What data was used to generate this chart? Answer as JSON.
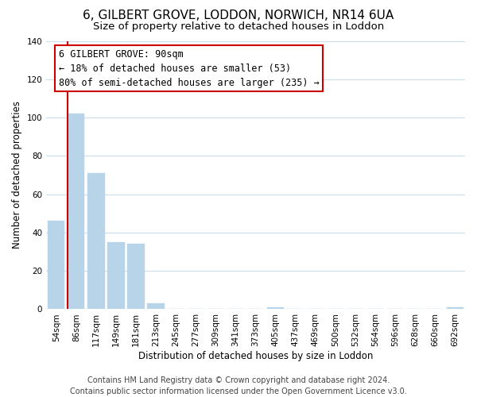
{
  "title": "6, GILBERT GROVE, LODDON, NORWICH, NR14 6UA",
  "subtitle": "Size of property relative to detached houses in Loddon",
  "xlabel": "Distribution of detached houses by size in Loddon",
  "ylabel": "Number of detached properties",
  "categories": [
    "54sqm",
    "86sqm",
    "117sqm",
    "149sqm",
    "181sqm",
    "213sqm",
    "245sqm",
    "277sqm",
    "309sqm",
    "341sqm",
    "373sqm",
    "405sqm",
    "437sqm",
    "469sqm",
    "500sqm",
    "532sqm",
    "564sqm",
    "596sqm",
    "628sqm",
    "660sqm",
    "692sqm"
  ],
  "values": [
    46,
    102,
    71,
    35,
    34,
    3,
    0,
    0,
    0,
    0,
    0,
    1,
    0,
    0,
    0,
    0,
    0,
    0,
    0,
    0,
    1
  ],
  "bar_color": "#b8d4e8",
  "property_line_label": "6 GILBERT GROVE: 90sqm",
  "annotation_line1": "← 18% of detached houses are smaller (53)",
  "annotation_line2": "80% of semi-detached houses are larger (235) →",
  "annotation_box_edge": "#cc0000",
  "annotation_box_face": "#ffffff",
  "property_line_color": "#cc0000",
  "ylim": [
    0,
    140
  ],
  "yticks": [
    0,
    20,
    40,
    60,
    80,
    100,
    120,
    140
  ],
  "footer_line1": "Contains HM Land Registry data © Crown copyright and database right 2024.",
  "footer_line2": "Contains public sector information licensed under the Open Government Licence v3.0.",
  "background_color": "#ffffff",
  "grid_color": "#ccdded",
  "title_fontsize": 11,
  "subtitle_fontsize": 9.5,
  "axis_label_fontsize": 8.5,
  "tick_fontsize": 7.5,
  "annotation_fontsize": 8.5,
  "footer_fontsize": 7
}
